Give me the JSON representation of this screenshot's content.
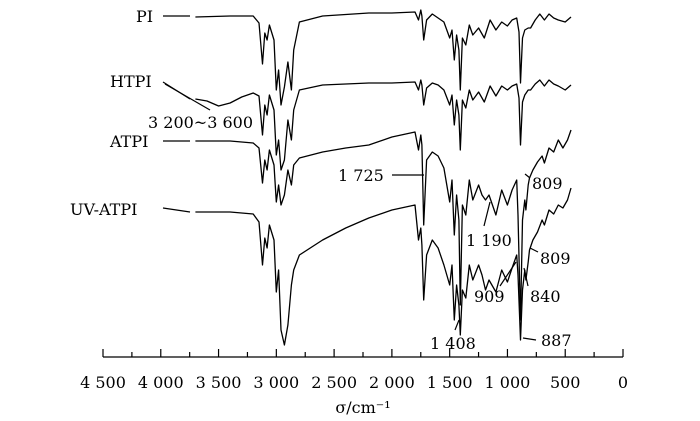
{
  "chart_data": {
    "type": "line",
    "title": "",
    "xlabel": "σ/cm⁻¹",
    "ylabel": "",
    "xlim": [
      4500,
      0
    ],
    "x_reversed": true,
    "grid": false,
    "ticks": [
      4500,
      4000,
      3500,
      3000,
      2500,
      2000,
      1500,
      1000,
      500,
      0
    ],
    "tick_labels": [
      "4 500",
      "4 000",
      "3 500",
      "3 000",
      "2 500",
      "2 000",
      "1 500",
      "1 000",
      "500",
      "0"
    ],
    "series": [
      {
        "name": "PI",
        "points": [
          [
            3700,
            17
          ],
          [
            3400,
            16
          ],
          [
            3200,
            16
          ],
          [
            3150,
            23
          ],
          [
            3120,
            64
          ],
          [
            3100,
            33
          ],
          [
            3080,
            40
          ],
          [
            3060,
            25
          ],
          [
            3020,
            40
          ],
          [
            3000,
            90
          ],
          [
            2980,
            70
          ],
          [
            2960,
            105
          ],
          [
            2930,
            87
          ],
          [
            2900,
            62
          ],
          [
            2870,
            90
          ],
          [
            2850,
            50
          ],
          [
            2800,
            22
          ],
          [
            2600,
            16
          ],
          [
            2200,
            13
          ],
          [
            2000,
            13
          ],
          [
            1800,
            12
          ],
          [
            1770,
            20
          ],
          [
            1750,
            10
          ],
          [
            1740,
            16
          ],
          [
            1725,
            40
          ],
          [
            1700,
            20
          ],
          [
            1650,
            14
          ],
          [
            1600,
            18
          ],
          [
            1550,
            22
          ],
          [
            1500,
            38
          ],
          [
            1480,
            30
          ],
          [
            1460,
            60
          ],
          [
            1440,
            35
          ],
          [
            1420,
            50
          ],
          [
            1408,
            90
          ],
          [
            1390,
            38
          ],
          [
            1360,
            45
          ],
          [
            1330,
            25
          ],
          [
            1300,
            35
          ],
          [
            1250,
            28
          ],
          [
            1200,
            38
          ],
          [
            1150,
            20
          ],
          [
            1100,
            30
          ],
          [
            1050,
            22
          ],
          [
            1000,
            26
          ],
          [
            960,
            20
          ],
          [
            920,
            18
          ],
          [
            900,
            32
          ],
          [
            887,
            83
          ],
          [
            870,
            38
          ],
          [
            850,
            30
          ],
          [
            820,
            28
          ],
          [
            800,
            28
          ],
          [
            760,
            20
          ],
          [
            720,
            14
          ],
          [
            680,
            20
          ],
          [
            640,
            14
          ],
          [
            600,
            18
          ],
          [
            560,
            20
          ],
          [
            500,
            22
          ],
          [
            450,
            17
          ]
        ]
      },
      {
        "name": "HTPI",
        "points": [
          [
            3700,
            99
          ],
          [
            3600,
            101
          ],
          [
            3500,
            106
          ],
          [
            3400,
            103
          ],
          [
            3300,
            97
          ],
          [
            3200,
            93
          ],
          [
            3150,
            96
          ],
          [
            3120,
            135
          ],
          [
            3100,
            105
          ],
          [
            3080,
            115
          ],
          [
            3060,
            95
          ],
          [
            3020,
            110
          ],
          [
            3000,
            155
          ],
          [
            2980,
            140
          ],
          [
            2960,
            170
          ],
          [
            2930,
            160
          ],
          [
            2900,
            120
          ],
          [
            2870,
            140
          ],
          [
            2850,
            110
          ],
          [
            2800,
            90
          ],
          [
            2600,
            85
          ],
          [
            2200,
            83
          ],
          [
            2000,
            83
          ],
          [
            1800,
            82
          ],
          [
            1770,
            90
          ],
          [
            1750,
            80
          ],
          [
            1740,
            85
          ],
          [
            1725,
            105
          ],
          [
            1700,
            88
          ],
          [
            1650,
            83
          ],
          [
            1600,
            85
          ],
          [
            1550,
            90
          ],
          [
            1500,
            105
          ],
          [
            1480,
            95
          ],
          [
            1460,
            125
          ],
          [
            1440,
            100
          ],
          [
            1420,
            115
          ],
          [
            1408,
            150
          ],
          [
            1390,
            100
          ],
          [
            1360,
            108
          ],
          [
            1330,
            90
          ],
          [
            1300,
            100
          ],
          [
            1250,
            92
          ],
          [
            1200,
            102
          ],
          [
            1150,
            86
          ],
          [
            1100,
            96
          ],
          [
            1050,
            86
          ],
          [
            1000,
            90
          ],
          [
            960,
            86
          ],
          [
            920,
            84
          ],
          [
            900,
            98
          ],
          [
            887,
            145
          ],
          [
            870,
            102
          ],
          [
            850,
            95
          ],
          [
            820,
            90
          ],
          [
            800,
            90
          ],
          [
            760,
            84
          ],
          [
            720,
            80
          ],
          [
            680,
            86
          ],
          [
            640,
            80
          ],
          [
            600,
            84
          ],
          [
            560,
            86
          ],
          [
            500,
            90
          ],
          [
            450,
            85
          ]
        ]
      },
      {
        "name": "ATPI",
        "points": [
          [
            3700,
            141
          ],
          [
            3400,
            141
          ],
          [
            3200,
            143
          ],
          [
            3150,
            148
          ],
          [
            3120,
            183
          ],
          [
            3100,
            160
          ],
          [
            3080,
            170
          ],
          [
            3060,
            150
          ],
          [
            3020,
            165
          ],
          [
            3000,
            202
          ],
          [
            2980,
            185
          ],
          [
            2960,
            205
          ],
          [
            2930,
            195
          ],
          [
            2900,
            170
          ],
          [
            2870,
            185
          ],
          [
            2850,
            165
          ],
          [
            2800,
            158
          ],
          [
            2600,
            152
          ],
          [
            2400,
            148
          ],
          [
            2200,
            145
          ],
          [
            2000,
            137
          ],
          [
            1800,
            132
          ],
          [
            1770,
            150
          ],
          [
            1750,
            135
          ],
          [
            1740,
            145
          ],
          [
            1725,
            225
          ],
          [
            1700,
            160
          ],
          [
            1650,
            152
          ],
          [
            1600,
            156
          ],
          [
            1550,
            168
          ],
          [
            1500,
            202
          ],
          [
            1480,
            180
          ],
          [
            1460,
            235
          ],
          [
            1440,
            195
          ],
          [
            1420,
            220
          ],
          [
            1408,
            305
          ],
          [
            1390,
            205
          ],
          [
            1360,
            215
          ],
          [
            1330,
            180
          ],
          [
            1300,
            200
          ],
          [
            1250,
            185
          ],
          [
            1220,
            195
          ],
          [
            1190,
            200
          ],
          [
            1160,
            195
          ],
          [
            1100,
            215
          ],
          [
            1050,
            190
          ],
          [
            1000,
            205
          ],
          [
            960,
            190
          ],
          [
            920,
            180
          ],
          [
            909,
            215
          ],
          [
            887,
            320
          ],
          [
            870,
            220
          ],
          [
            850,
            200
          ],
          [
            840,
            210
          ],
          [
            820,
            185
          ],
          [
            809,
            178
          ],
          [
            780,
            170
          ],
          [
            740,
            162
          ],
          [
            700,
            156
          ],
          [
            680,
            163
          ],
          [
            640,
            148
          ],
          [
            600,
            152
          ],
          [
            560,
            140
          ],
          [
            520,
            148
          ],
          [
            480,
            140
          ],
          [
            450,
            130
          ]
        ]
      },
      {
        "name": "UV-ATPI",
        "points": [
          [
            3700,
            212
          ],
          [
            3400,
            212
          ],
          [
            3200,
            214
          ],
          [
            3150,
            222
          ],
          [
            3120,
            265
          ],
          [
            3100,
            238
          ],
          [
            3080,
            248
          ],
          [
            3060,
            225
          ],
          [
            3020,
            240
          ],
          [
            3000,
            292
          ],
          [
            2980,
            270
          ],
          [
            2960,
            330
          ],
          [
            2930,
            345
          ],
          [
            2900,
            325
          ],
          [
            2870,
            285
          ],
          [
            2850,
            270
          ],
          [
            2800,
            255
          ],
          [
            2600,
            240
          ],
          [
            2400,
            228
          ],
          [
            2200,
            218
          ],
          [
            2000,
            210
          ],
          [
            1800,
            205
          ],
          [
            1770,
            240
          ],
          [
            1750,
            228
          ],
          [
            1740,
            245
          ],
          [
            1725,
            300
          ],
          [
            1700,
            255
          ],
          [
            1650,
            240
          ],
          [
            1600,
            248
          ],
          [
            1550,
            265
          ],
          [
            1500,
            285
          ],
          [
            1480,
            265
          ],
          [
            1460,
            320
          ],
          [
            1440,
            285
          ],
          [
            1420,
            305
          ],
          [
            1408,
            335
          ],
          [
            1390,
            290
          ],
          [
            1360,
            298
          ],
          [
            1330,
            265
          ],
          [
            1300,
            280
          ],
          [
            1250,
            265
          ],
          [
            1220,
            275
          ],
          [
            1190,
            290
          ],
          [
            1160,
            280
          ],
          [
            1100,
            292
          ],
          [
            1050,
            270
          ],
          [
            1000,
            282
          ],
          [
            960,
            268
          ],
          [
            920,
            255
          ],
          [
            909,
            275
          ],
          [
            887,
            340
          ],
          [
            870,
            290
          ],
          [
            850,
            270
          ],
          [
            840,
            280
          ],
          [
            820,
            262
          ],
          [
            809,
            250
          ],
          [
            780,
            240
          ],
          [
            740,
            232
          ],
          [
            700,
            220
          ],
          [
            680,
            225
          ],
          [
            640,
            210
          ],
          [
            600,
            214
          ],
          [
            560,
            205
          ],
          [
            520,
            208
          ],
          [
            480,
            200
          ],
          [
            450,
            188
          ]
        ]
      }
    ],
    "annotations": [
      {
        "text": "3 200~3 600",
        "x": 3400
      },
      {
        "text": "1 725",
        "x": 1725
      },
      {
        "text": "1 190",
        "x": 1190
      },
      {
        "text": "1 408",
        "x": 1408
      },
      {
        "text": "909",
        "x": 909
      },
      {
        "text": "840",
        "x": 840
      },
      {
        "text": "887",
        "x": 887
      },
      {
        "text": "809",
        "x": 809
      },
      {
        "text": "809",
        "x": 809
      }
    ]
  }
}
